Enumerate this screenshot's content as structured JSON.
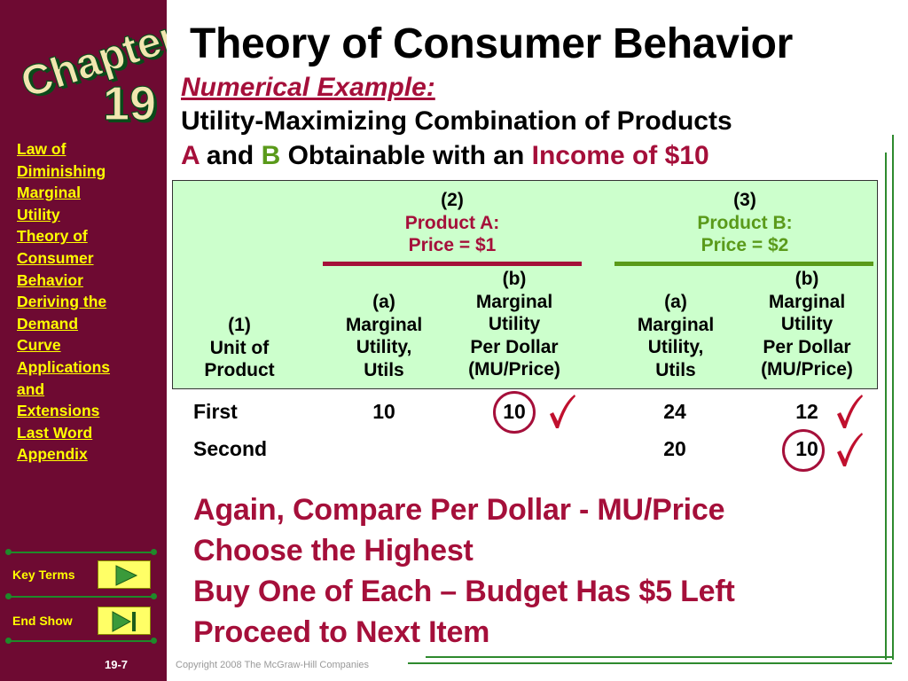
{
  "sidebar": {
    "chapter_logo": {
      "word": "Chapter",
      "number": "19"
    },
    "toc": [
      "Law of",
      "Diminishing",
      "Marginal",
      "Utility",
      "Theory of",
      "Consumer",
      "Behavior",
      "Deriving the",
      "Demand",
      "Curve",
      "Applications",
      "and",
      "Extensions",
      "Last Word",
      "Appendix"
    ],
    "key_terms_label": "Key Terms",
    "end_show_label": "End Show",
    "page_number": "19-7"
  },
  "header": {
    "title": "Theory of Consumer Behavior",
    "subtitle": "Numerical Example:",
    "line1": "Utility-Maximizing Combination of Products",
    "line2_a": "A",
    "line2_and": " and ",
    "line2_b": "B",
    "line2_mid": " Obtainable with an ",
    "line2_income": "Income of $10"
  },
  "table": {
    "col1": {
      "num": "(1)",
      "line1": "Unit of",
      "line2": "Product"
    },
    "productA": {
      "num": "(2)",
      "name": "Product A:",
      "price": "Price = $1"
    },
    "productB": {
      "num": "(3)",
      "name": "Product B:",
      "price": "Price = $2"
    },
    "a_header": {
      "num": "(a)",
      "line1": "Marginal",
      "line2": "Utility,",
      "line3": "Utils"
    },
    "b_header": {
      "num": "(b)",
      "line1": "Marginal",
      "line2": "Utility",
      "line3": "Per Dollar",
      "line4": "(MU/Price)"
    },
    "rows": [
      {
        "unit": "First",
        "a_mu": "10",
        "a_mu_per_dollar": "10",
        "b_mu": "24",
        "b_mu_per_dollar": "12"
      },
      {
        "unit": "Second",
        "a_mu": "",
        "a_mu_per_dollar": "",
        "b_mu": "20",
        "b_mu_per_dollar": "10"
      }
    ]
  },
  "notes": [
    "Again, Compare Per Dollar - MU/Price",
    "Choose the Highest",
    "Buy One of Each – Budget Has $5 Left",
    "Proceed to Next Item"
  ],
  "footer": {
    "copyright": "Copyright 2008 The McGraw-Hill Companies"
  },
  "colors": {
    "sidebar": "#6e0a32",
    "accent_red": "#a50f3a",
    "accent_green": "#5a9a1a",
    "table_bg": "#ccffcc",
    "toc_link": "#ffff00"
  }
}
